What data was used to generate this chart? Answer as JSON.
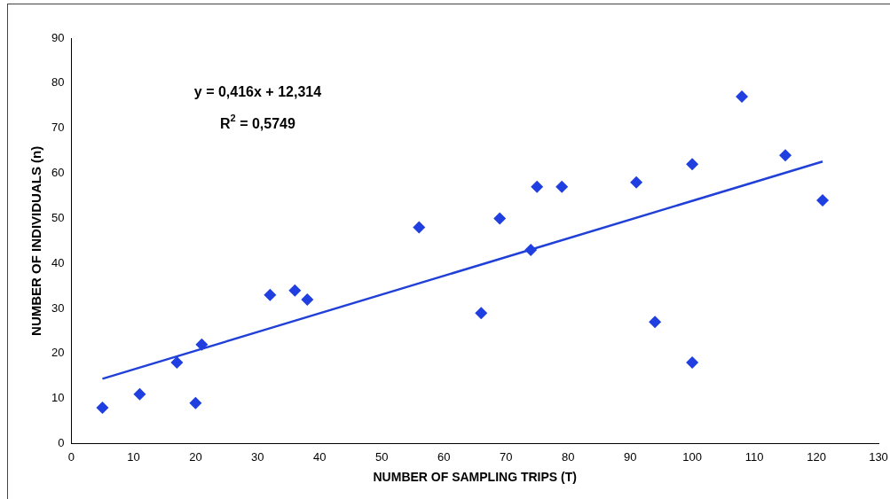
{
  "chart_data": {
    "type": "scatter",
    "xlabel": "NUMBER OF SAMPLING TRIPS (T)",
    "ylabel": "NUMBER OF INDIVIDUALS (n)",
    "xlim": [
      0,
      130
    ],
    "xticks": [
      0,
      10,
      20,
      30,
      40,
      50,
      60,
      70,
      80,
      90,
      100,
      110,
      120,
      130
    ],
    "ylim": [
      0,
      90
    ],
    "yticks": [
      0,
      10,
      20,
      30,
      40,
      50,
      60,
      70,
      80,
      90
    ],
    "grid": false,
    "legend": false,
    "marker": "diamond",
    "annotations": [
      "y = 0,416x + 12,314",
      "R$^{2}$ = 0,5749"
    ],
    "series": [
      {
        "type": "scatter",
        "color": "#1f3fe0",
        "x": [
          5,
          11,
          17,
          20,
          21,
          32,
          36,
          38,
          56,
          66,
          69,
          74,
          75,
          79,
          91,
          94,
          100,
          100,
          108,
          115,
          121
        ],
        "values": [
          8,
          11,
          18,
          9,
          22,
          33,
          34,
          32,
          48,
          29,
          50,
          43,
          57,
          57,
          58,
          27,
          62,
          18,
          77,
          64,
          54
        ]
      },
      {
        "type": "line",
        "color": "#2040d8",
        "marker": "none",
        "x": [
          5,
          121
        ],
        "values": [
          14.4,
          62.6
        ]
      }
    ]
  }
}
